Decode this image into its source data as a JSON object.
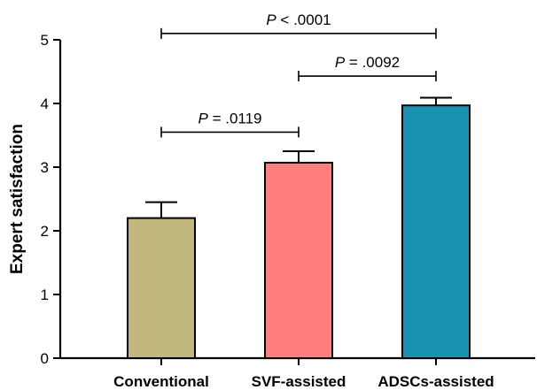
{
  "chart_data": {
    "type": "bar",
    "categories": [
      "Conventional",
      "SVF-assisted",
      "ADSCs-assisted"
    ],
    "values": [
      2.2,
      3.07,
      3.97
    ],
    "errors": [
      0.25,
      0.18,
      0.12
    ],
    "colors": [
      "#c2b77d",
      "#ff7f7f",
      "#1a93b0"
    ],
    "xlabel": "",
    "ylabel": "Expert satisfaction",
    "ylim": [
      0,
      5
    ],
    "yticks": [
      0,
      1,
      2,
      3,
      4,
      5
    ],
    "grid": false,
    "legend": "none",
    "significance": [
      {
        "from": 0,
        "to": 1,
        "text": "= .0119",
        "prefix": "P",
        "level": 3.55
      },
      {
        "from": 1,
        "to": 2,
        "text": "= .0092",
        "prefix": "P",
        "level": 4.43
      },
      {
        "from": 0,
        "to": 2,
        "text": "< .0001",
        "prefix": "P",
        "level": 5.1
      }
    ]
  }
}
